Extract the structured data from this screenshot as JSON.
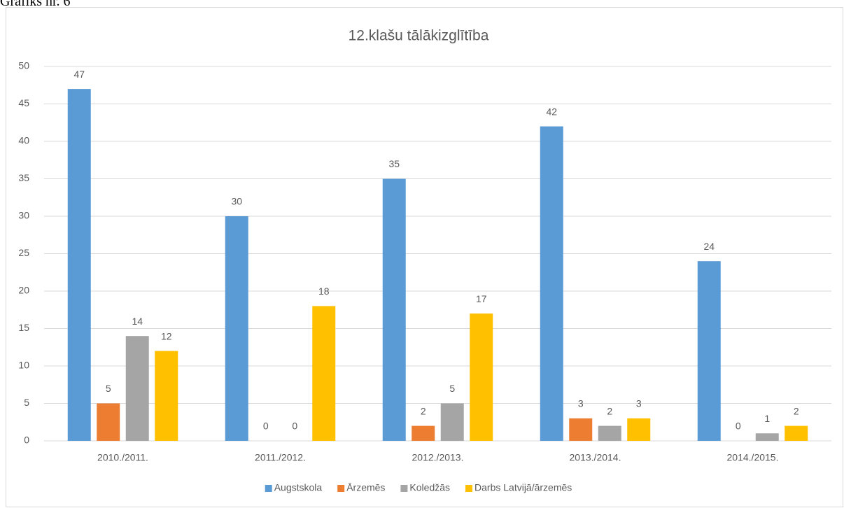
{
  "caption": "Grafiks nr. 6",
  "chart_data": {
    "type": "bar",
    "title": "12.klašu tālākizglītība",
    "categories": [
      "2010./2011.",
      "2011./2012.",
      "2012./2013.",
      "2013./2014.",
      "2014./2015."
    ],
    "series": [
      {
        "name": "Augstskola",
        "color": "#5b9bd5",
        "values": [
          47,
          30,
          35,
          42,
          24
        ]
      },
      {
        "name": "Ārzemēs",
        "color": "#ed7d31",
        "values": [
          5,
          0,
          2,
          3,
          0
        ]
      },
      {
        "name": "Koledžās",
        "color": "#a5a5a5",
        "values": [
          14,
          0,
          5,
          2,
          1
        ]
      },
      {
        "name": "Darbs Latvijā/ārzemēs",
        "color": "#ffc000",
        "values": [
          12,
          18,
          17,
          3,
          2
        ]
      }
    ],
    "ylim": [
      0,
      50
    ],
    "yticks": [
      0,
      5,
      10,
      15,
      20,
      25,
      30,
      35,
      40,
      45,
      50
    ],
    "grid": true,
    "legend": "bottom"
  }
}
